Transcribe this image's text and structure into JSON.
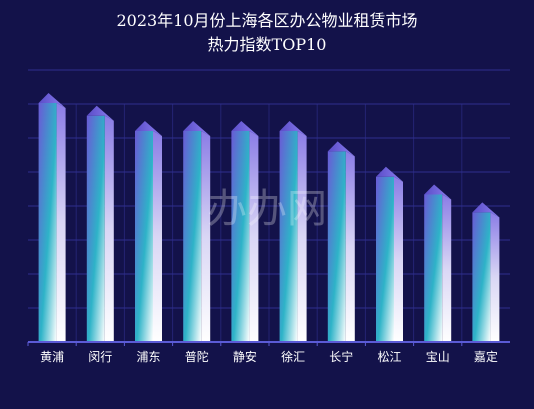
{
  "chart_data": {
    "type": "bar",
    "title": "2023年10月份上海各区办公物业租赁市场",
    "subtitle": "热力指数TOP10",
    "categories": [
      "黄浦",
      "闵行",
      "浦东",
      "普陀",
      "静安",
      "徐汇",
      "长宁",
      "松江",
      "宝山",
      "嘉定"
    ],
    "values": [
      94,
      89,
      83,
      83,
      83,
      83,
      75,
      65,
      58,
      51
    ],
    "ylim": [
      0,
      107
    ],
    "grid": true,
    "legend": "none",
    "watermark": "办办网",
    "colors": {
      "background": "#13124a",
      "grid": "#2f2f8f",
      "axis": "#5b5bd6",
      "bar_top": "#6a5ad6",
      "bar_mid": "#2eb3c8",
      "bar_bottom": "#ffffff"
    }
  }
}
